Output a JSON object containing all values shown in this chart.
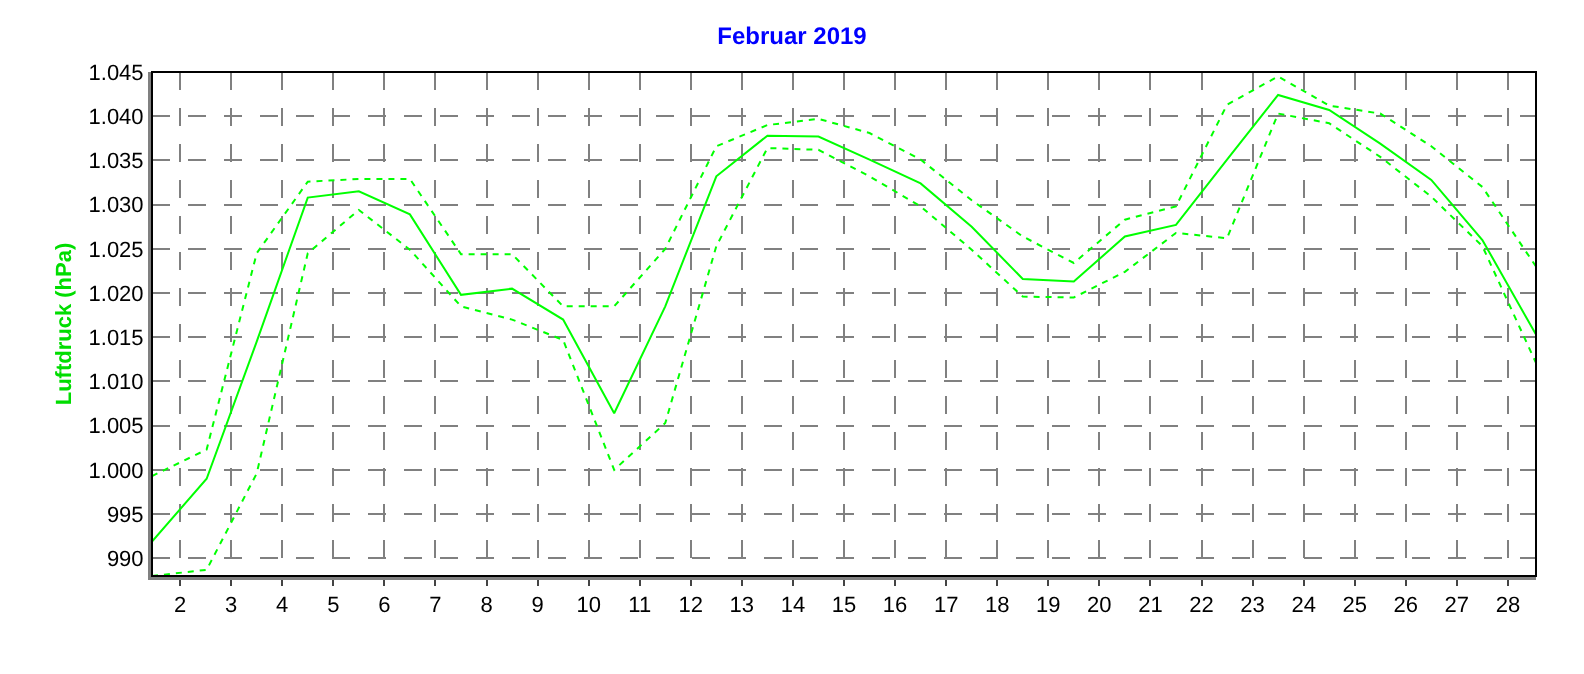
{
  "chart_data": {
    "type": "line",
    "title": "Februar 2019",
    "ylabel": "Luftdruck (hPa)",
    "x": [
      1.45,
      2.52,
      3.5,
      4.5,
      5.5,
      6.5,
      7.5,
      8.5,
      9.5,
      10.5,
      11.5,
      12.5,
      13.5,
      14.5,
      15.5,
      16.5,
      17.5,
      18.5,
      19.5,
      20.5,
      21.5,
      22.5,
      23.5,
      24.5,
      25.5,
      26.5,
      27.5,
      28.55
    ],
    "series": [
      {
        "color": "#00ff00",
        "line_style": "solid",
        "values": [
          991.9,
          999.0,
          1014.5,
          1030.8,
          1031.5,
          1028.9,
          1019.8,
          1020.5,
          1017.0,
          1006.4,
          1018.5,
          1033.2,
          1037.8,
          1037.7,
          1035.1,
          1032.4,
          1027.5,
          1021.6,
          1021.3,
          1026.4,
          1027.7,
          1035.1,
          1042.4,
          1040.7,
          1036.9,
          1032.8,
          1026.0,
          1015.3
        ]
      },
      {
        "color": "#00ff00",
        "line_style": "dotted",
        "values": [
          999.3,
          1002.3,
          1024.5,
          1032.6,
          1032.9,
          1032.9,
          1024.4,
          1024.4,
          1018.5,
          1018.5,
          1025.0,
          1036.6,
          1039.0,
          1039.7,
          1038.1,
          1035.1,
          1030.5,
          1026.4,
          1023.4,
          1028.3,
          1029.8,
          1041.3,
          1044.5,
          1041.2,
          1040.3,
          1036.6,
          1032.0,
          1023.0
        ]
      },
      {
        "color": "#00ff00",
        "line_style": "dotted",
        "values": [
          988.0,
          988.7,
          999.6,
          1024.5,
          1029.4,
          1024.9,
          1018.5,
          1017.0,
          1014.7,
          1000.0,
          1005.3,
          1025.3,
          1036.4,
          1036.2,
          1033.2,
          1029.8,
          1024.9,
          1019.6,
          1019.5,
          1022.4,
          1026.8,
          1026.2,
          1040.3,
          1039.2,
          1035.4,
          1030.9,
          1025.3,
          1012.1
        ]
      }
    ],
    "xlim": [
      1.45,
      28.55
    ],
    "xticks": [
      2,
      3,
      4,
      5,
      6,
      7,
      8,
      9,
      10,
      11,
      12,
      13,
      14,
      15,
      16,
      17,
      18,
      19,
      20,
      21,
      22,
      23,
      24,
      25,
      26,
      27,
      28
    ],
    "ylim": [
      988,
      1045
    ],
    "yticks": [
      {
        "value": 990,
        "label": "990"
      },
      {
        "value": 995,
        "label": "995"
      },
      {
        "value": 1000,
        "label": "1.000"
      },
      {
        "value": 1005,
        "label": "1.005"
      },
      {
        "value": 1010,
        "label": "1.010"
      },
      {
        "value": 1015,
        "label": "1.015"
      },
      {
        "value": 1020,
        "label": "1.020"
      },
      {
        "value": 1025,
        "label": "1.025"
      },
      {
        "value": 1030,
        "label": "1.030"
      },
      {
        "value": 1035,
        "label": "1.035"
      },
      {
        "value": 1040,
        "label": "1.040"
      },
      {
        "value": 1045,
        "label": "1.045"
      }
    ],
    "grid": true,
    "marker": "none"
  }
}
